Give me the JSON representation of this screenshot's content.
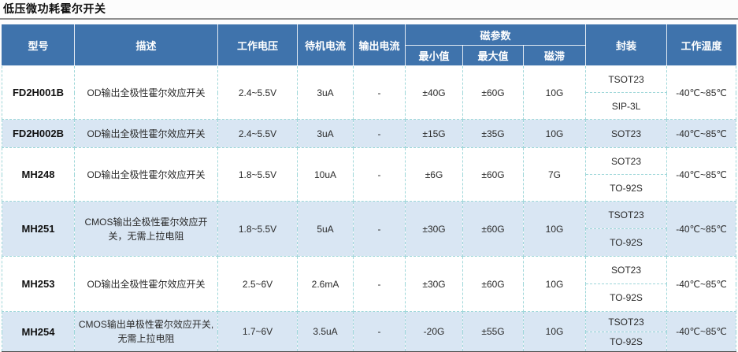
{
  "page": {
    "title": "低压微功耗霍尔开关"
  },
  "table": {
    "columns": {
      "model": "型号",
      "description": "描述",
      "operating_voltage": "工作电压",
      "standby_current": "待机电流",
      "output_current": "输出电流",
      "magnetic_params": "磁参数",
      "min_value": "最小值",
      "max_value": "最大值",
      "hysteresis": "磁滞",
      "package": "封装",
      "operating_temperature": "工作温度"
    },
    "rows": [
      {
        "model": "FD2H001B",
        "description": "OD输出全极性霍尔效应开关",
        "operating_voltage": "2.4~5.5V",
        "standby_current": "3uA",
        "output_current": "-",
        "min_value": "±40G",
        "max_value": "±60G",
        "hysteresis": "10G",
        "packages": [
          "TSOT23",
          "SIP-3L"
        ],
        "operating_temperature": "-40℃~85℃"
      },
      {
        "model": "FD2H002B",
        "description": "OD输出全极性霍尔效应开关",
        "operating_voltage": "2.4~5.5V",
        "standby_current": "3uA",
        "output_current": "-",
        "min_value": "±15G",
        "max_value": "±35G",
        "hysteresis": "10G",
        "packages": [
          "SOT23"
        ],
        "operating_temperature": "-40℃~85℃"
      },
      {
        "model": "MH248",
        "description": "OD输出全极性霍尔效应开关",
        "operating_voltage": "1.8~5.5V",
        "standby_current": "10uA",
        "output_current": "-",
        "min_value": "±6G",
        "max_value": "±60G",
        "hysteresis": "7G",
        "packages": [
          "SOT23",
          "TO-92S"
        ],
        "operating_temperature": "-40℃~85℃"
      },
      {
        "model": "MH251",
        "description": "CMOS输出全极性霍尔效应开关，无需上拉电阻",
        "operating_voltage": "1.8~5.5V",
        "standby_current": "5uA",
        "output_current": "-",
        "min_value": "±30G",
        "max_value": "±60G",
        "hysteresis": "10G",
        "packages": [
          "TSOT23",
          "TO-92S"
        ],
        "operating_temperature": "-40℃~85℃"
      },
      {
        "model": "MH253",
        "description": "OD输出全极性霍尔效应开关",
        "operating_voltage": "2.5~6V",
        "standby_current": "2.6mA",
        "output_current": "-",
        "min_value": "±30G",
        "max_value": "±60G",
        "hysteresis": "10G",
        "packages": [
          "SOT23",
          "TO-92S"
        ],
        "operating_temperature": "-40℃~85℃"
      },
      {
        "model": "MH254",
        "description": "CMOS输出单极性霍尔效应开关,无需上拉电阻",
        "operating_voltage": "1.7~6V",
        "standby_current": "3.5uA",
        "output_current": "-",
        "min_value": "-20G",
        "max_value": "±55G",
        "hysteresis": "10G",
        "packages": [
          "TSOT23",
          "TO-92S"
        ],
        "operating_temperature": "-40℃~85℃"
      }
    ]
  },
  "colors": {
    "header_bg": "#3f73ac",
    "alt_row_bg": "#d9e6f3",
    "grid_line": "#9ed7d9",
    "bottom_border": "#4e4e4e"
  }
}
